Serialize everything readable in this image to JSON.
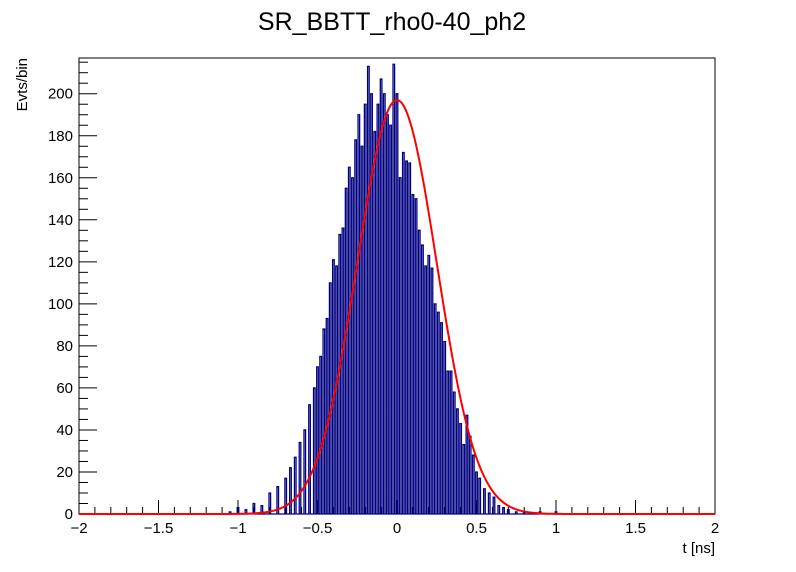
{
  "chart_data": {
    "type": "line",
    "title": "SR_BBTT_rho0-40_ph2",
    "xlabel": "t [ns]",
    "ylabel": "Evts/bin",
    "xlim": [
      -2,
      2
    ],
    "ylim": [
      0,
      217
    ],
    "x_ticks": [
      -2,
      -1.5,
      -1,
      -0.5,
      0,
      0.5,
      1,
      1.5,
      2
    ],
    "x_tick_labels": [
      "−2",
      "−1.5",
      "−1",
      "−0.5",
      "0",
      "0.5",
      "1",
      "1.5",
      "2"
    ],
    "y_ticks": [
      0,
      20,
      40,
      60,
      80,
      100,
      120,
      140,
      160,
      180,
      200
    ],
    "y_tick_labels": [
      "0",
      "20",
      "40",
      "60",
      "80",
      "100",
      "120",
      "140",
      "160",
      "180",
      "200"
    ],
    "grid": false,
    "legend": "none",
    "series": [
      {
        "kind": "histogram-step",
        "color": "#000080",
        "bin_width": 0.01,
        "x": [
          -1.1,
          -1.05,
          -1.0,
          -0.95,
          -0.9,
          -0.85,
          -0.8,
          -0.75,
          -0.7,
          -0.67,
          -0.64,
          -0.61,
          -0.58,
          -0.55,
          -0.52,
          -0.5,
          -0.48,
          -0.46,
          -0.44,
          -0.42,
          -0.4,
          -0.38,
          -0.36,
          -0.34,
          -0.32,
          -0.3,
          -0.28,
          -0.26,
          -0.24,
          -0.22,
          -0.2,
          -0.18,
          -0.16,
          -0.14,
          -0.12,
          -0.1,
          -0.08,
          -0.06,
          -0.04,
          -0.02,
          0.0,
          0.02,
          0.04,
          0.06,
          0.08,
          0.1,
          0.12,
          0.14,
          0.16,
          0.18,
          0.2,
          0.22,
          0.24,
          0.26,
          0.28,
          0.3,
          0.32,
          0.34,
          0.36,
          0.38,
          0.4,
          0.42,
          0.44,
          0.46,
          0.48,
          0.5,
          0.52,
          0.55,
          0.58,
          0.61,
          0.64,
          0.67,
          0.7,
          0.75,
          0.8,
          0.85,
          0.9,
          0.95,
          1.0,
          1.05,
          1.1,
          1.15
        ],
        "values": [
          0,
          1,
          3,
          2,
          5,
          4,
          10,
          13,
          17,
          22,
          27,
          34,
          40,
          52,
          60,
          70,
          75,
          88,
          93,
          110,
          121,
          118,
          133,
          136,
          155,
          165,
          160,
          178,
          190,
          175,
          195,
          213,
          200,
          182,
          195,
          207,
          200,
          190,
          185,
          214,
          200,
          160,
          172,
          168,
          167,
          152,
          150,
          135,
          128,
          118,
          123,
          117,
          100,
          96,
          91,
          82,
          68,
          68,
          58,
          50,
          43,
          33,
          47,
          37,
          28,
          20,
          17,
          12,
          10,
          8,
          4,
          3,
          2,
          1,
          1,
          0,
          1,
          0,
          1,
          0,
          0,
          0
        ]
      },
      {
        "kind": "gaussian-fit",
        "color": "#ff0000",
        "amplitude": 197,
        "mean": 0.0,
        "sigma": 0.25
      }
    ]
  }
}
